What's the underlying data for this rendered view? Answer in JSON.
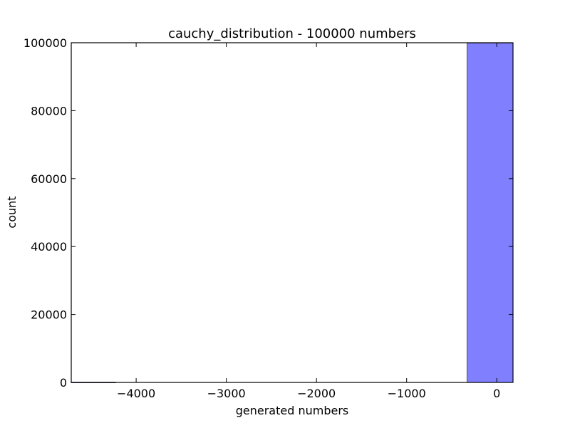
{
  "chart_data": {
    "type": "histogram",
    "title": "cauchy_distribution - 100000 numbers",
    "xlabel": "generated numbers",
    "ylabel": "count",
    "xlim": [
      -4720,
      180
    ],
    "ylim": [
      0,
      100000
    ],
    "xticks": [
      {
        "value": -4000,
        "label": "−4000"
      },
      {
        "value": -3000,
        "label": "−3000"
      },
      {
        "value": -2000,
        "label": "−2000"
      },
      {
        "value": -1000,
        "label": "−1000"
      },
      {
        "value": 0,
        "label": "0"
      }
    ],
    "yticks": [
      {
        "value": 0,
        "label": "0"
      },
      {
        "value": 20000,
        "label": "20000"
      },
      {
        "value": 40000,
        "label": "40000"
      },
      {
        "value": 60000,
        "label": "60000"
      },
      {
        "value": 80000,
        "label": "80000"
      },
      {
        "value": 100000,
        "label": "100000"
      }
    ],
    "bins": [
      {
        "start": -4720,
        "end": -4230,
        "count": 60
      },
      {
        "start": -330,
        "end": 180,
        "count": 99900
      }
    ],
    "colors": {
      "bar_fill": "#8080ff",
      "bar_edge": "#55557a",
      "axes": "#000000"
    },
    "grid": false
  }
}
